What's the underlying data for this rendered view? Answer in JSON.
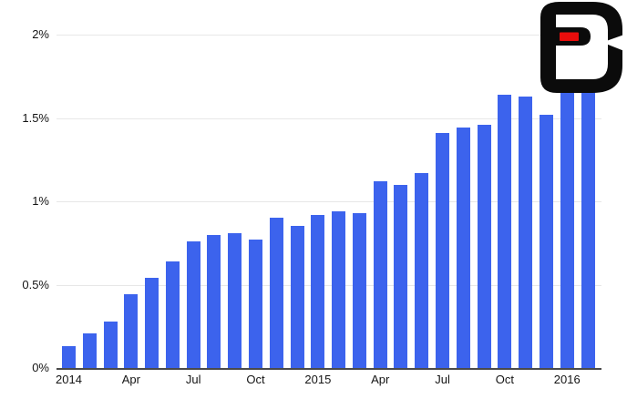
{
  "logo": {
    "name": "BGR logo",
    "black": "#0b0b0b",
    "red": "#e90d0c"
  },
  "chart_data": {
    "type": "bar",
    "title": "",
    "xlabel": "",
    "ylabel": "",
    "unit": "percent",
    "ylim": [
      0,
      2
    ],
    "grid": true,
    "legend": "none",
    "bar_color": "#3c63ed",
    "categories": [
      "Jan 2014",
      "Feb 2014",
      "Mar 2014",
      "Apr 2014",
      "May 2014",
      "Jun 2014",
      "Jul 2014",
      "Aug 2014",
      "Sep 2014",
      "Oct 2014",
      "Nov 2014",
      "Dec 2014",
      "Jan 2015",
      "Feb 2015",
      "Mar 2015",
      "Apr 2015",
      "May 2015",
      "Jun 2015",
      "Jul 2015",
      "Aug 2015",
      "Sep 2015",
      "Oct 2015",
      "Nov 2015",
      "Dec 2015",
      "Jan 2016",
      "Feb 2016"
    ],
    "values": [
      0.13,
      0.21,
      0.28,
      0.44,
      0.54,
      0.64,
      0.76,
      0.8,
      0.81,
      0.77,
      0.9,
      0.85,
      0.92,
      0.94,
      0.93,
      1.12,
      1.1,
      1.17,
      1.41,
      1.44,
      1.46,
      1.64,
      1.63,
      1.52,
      1.71,
      1.78
    ],
    "y_ticks": [
      {
        "value": 0,
        "label": "0%"
      },
      {
        "value": 0.5,
        "label": "0.5%"
      },
      {
        "value": 1,
        "label": "1%"
      },
      {
        "value": 1.5,
        "label": "1.5%"
      },
      {
        "value": 2,
        "label": "2%"
      }
    ],
    "x_ticks": [
      {
        "index": 0,
        "label": "2014"
      },
      {
        "index": 3,
        "label": "Apr"
      },
      {
        "index": 6,
        "label": "Jul"
      },
      {
        "index": 9,
        "label": "Oct"
      },
      {
        "index": 12,
        "label": "2015"
      },
      {
        "index": 15,
        "label": "Apr"
      },
      {
        "index": 18,
        "label": "Jul"
      },
      {
        "index": 21,
        "label": "Oct"
      },
      {
        "index": 24,
        "label": "2016"
      }
    ]
  }
}
